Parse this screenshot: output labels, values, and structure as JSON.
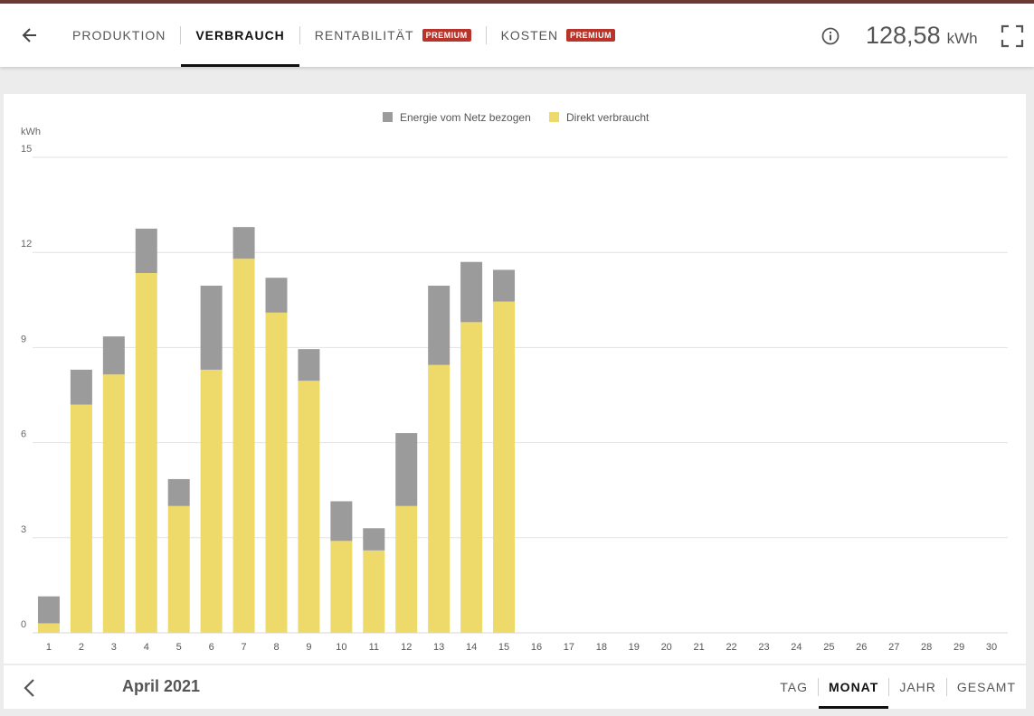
{
  "header": {
    "tabs": [
      {
        "label": "PRODUKTION",
        "active": false
      },
      {
        "label": "VERBRAUCH",
        "active": true
      },
      {
        "label": "RENTABILITÄT",
        "badge": "PREMIUM",
        "active": false
      },
      {
        "label": "KOSTEN",
        "badge": "PREMIUM",
        "active": false
      }
    ],
    "total_value": "128,58",
    "total_unit": "kWh"
  },
  "footer": {
    "period": "April 2021",
    "ranges": [
      {
        "label": "TAG",
        "active": false
      },
      {
        "label": "MONAT",
        "active": true
      },
      {
        "label": "JAHR",
        "active": false
      },
      {
        "label": "GESAMT",
        "active": false
      }
    ]
  },
  "colors": {
    "grid": "#e2e2e2",
    "axis": "#d7d7d7",
    "premium_badge": "#b8332a",
    "top_accent": "#6b3a32"
  },
  "chart_data": {
    "type": "bar",
    "stacked": true,
    "ylabel": "kWh",
    "ylim": [
      0,
      15
    ],
    "yticks": [
      0,
      3,
      6,
      9,
      12,
      15
    ],
    "legend_position": "top-center",
    "grid": true,
    "categories": [
      "1",
      "2",
      "3",
      "4",
      "5",
      "6",
      "7",
      "8",
      "9",
      "10",
      "11",
      "12",
      "13",
      "14",
      "15",
      "16",
      "17",
      "18",
      "19",
      "20",
      "21",
      "22",
      "23",
      "24",
      "25",
      "26",
      "27",
      "28",
      "29",
      "30"
    ],
    "series": [
      {
        "name": "Direkt verbraucht",
        "color": "#eed96b",
        "values": [
          0.3,
          7.2,
          8.15,
          11.35,
          4.0,
          8.3,
          11.8,
          10.1,
          7.95,
          2.9,
          2.6,
          4.0,
          8.45,
          9.8,
          10.45,
          0,
          0,
          0,
          0,
          0,
          0,
          0,
          0,
          0,
          0,
          0,
          0,
          0,
          0,
          0
        ]
      },
      {
        "name": "Energie vom Netz bezogen",
        "color": "#9b9b9b",
        "values": [
          0.85,
          1.1,
          1.2,
          1.4,
          0.85,
          2.65,
          1.0,
          1.1,
          1.0,
          1.25,
          0.7,
          2.3,
          2.5,
          1.9,
          1.0,
          0,
          0,
          0,
          0,
          0,
          0,
          0,
          0,
          0,
          0,
          0,
          0,
          0,
          0,
          0
        ]
      }
    ]
  }
}
